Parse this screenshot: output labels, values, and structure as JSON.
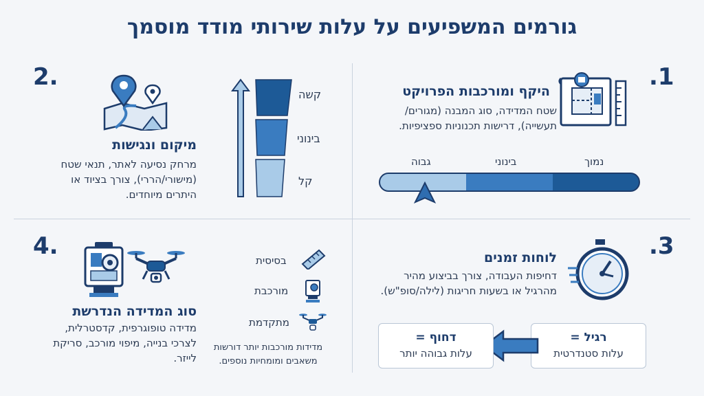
{
  "title": "גורמים המשפיעים על עלות שירותי מודד מוסמך",
  "sections": {
    "s1": {
      "number": ".1",
      "title": "היקף ומורכבות הפרויקט",
      "desc_line1": "שטח המדידה, סוג המבנה (מגורים/",
      "desc_line2": "תעשייה), דרישות תכנוניות ספציפיות.",
      "scale": {
        "low": "נמוך",
        "mid": "בינוני",
        "high": "גבוה"
      }
    },
    "s2": {
      "number": "2.",
      "title": "מיקום ונגישות",
      "desc_line1": "מרחק נסיעה לאתר, תנאי שטח",
      "desc_line2": "(מישורי/הררי), צורך בציוד או",
      "desc_line3": "היתרים מיוחדים.",
      "difficulty": {
        "hard": "קשה",
        "medium": "בינוני",
        "easy": "קל"
      }
    },
    "s3": {
      "number": ".3",
      "title": "לוחות זמנים",
      "desc_line1": "דחיפות העבודה, צורך בביצוע מהיר",
      "desc_line2": "מהרגיל או בשעות חריגות (לילה/סופ\"ש).",
      "regular_title": "רגיל =",
      "regular_sub": "עלות סטנדרטית",
      "urgent_title": "דחוף =",
      "urgent_sub": "עלות גבוהה יותר"
    },
    "s4": {
      "number": "4.",
      "title": "סוג המדידה הנדרשת",
      "desc_line1": "מדידה טופוגרפית, קדסטרלית,",
      "desc_line2": "לצרכי בנייה, מיפוי מורכב, סריקת",
      "desc_line3": "לייזר.",
      "levels": {
        "basic": "בסיסית",
        "complex": "מורכבת",
        "advanced": "מתקדמת"
      },
      "note_line1": "מדידות מורכבות יותר דורשות",
      "note_line2": "משאבים ומומחיות נוספים."
    }
  },
  "colors": {
    "dark": "#1d5a97",
    "mid": "#3a7cc0",
    "light": "#a9cbe8",
    "navy": "#1d3c6b"
  },
  "icons": [
    "blueprint-icon",
    "map-pin-icon",
    "stopwatch-icon",
    "total-station-icon",
    "drone-icon",
    "ruler-icon",
    "arrow-left-icon",
    "arrow-up-icon"
  ]
}
